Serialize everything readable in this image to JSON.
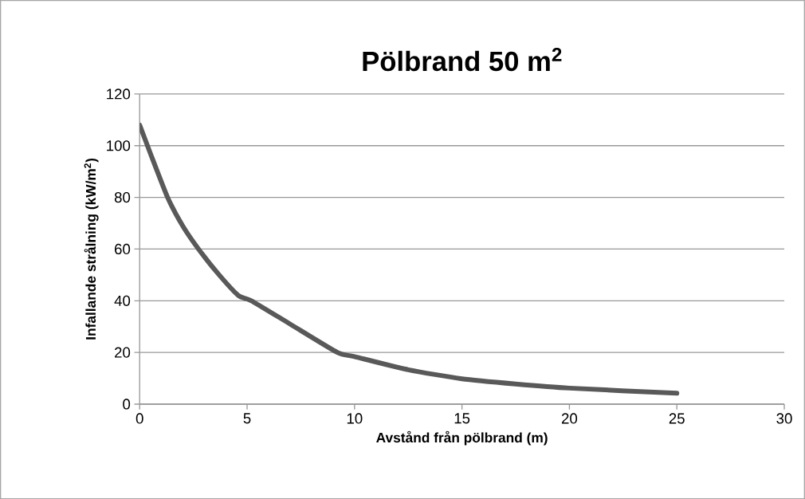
{
  "chart_data": {
    "type": "line",
    "title": "Pölbrand 50 m$^{2}$",
    "xlabel": "Avstånd från pölbrand (m)",
    "ylabel": "Infallande strålning (kW/m$^{2}$)",
    "xlim": [
      0,
      30
    ],
    "xticks": [
      0,
      5,
      10,
      15,
      20,
      25,
      30
    ],
    "ylim": [
      0,
      120
    ],
    "yticks": [
      0,
      20,
      40,
      60,
      80,
      100,
      120
    ],
    "grid": "y",
    "marker": "none",
    "line_style": "solid",
    "series": [
      {
        "color": "#595959",
        "x": [
          0,
          0.5,
          1.3,
          2,
          2.74,
          3.7,
          4.6,
          5.2,
          7,
          9.2,
          10,
          12.5,
          15,
          17.5,
          20,
          25
        ],
        "values": [
          108,
          97,
          80,
          69,
          60,
          50,
          42,
          40,
          31,
          20,
          18.4,
          13.3,
          9.8,
          7.8,
          6.2,
          4.2
        ]
      }
    ]
  }
}
